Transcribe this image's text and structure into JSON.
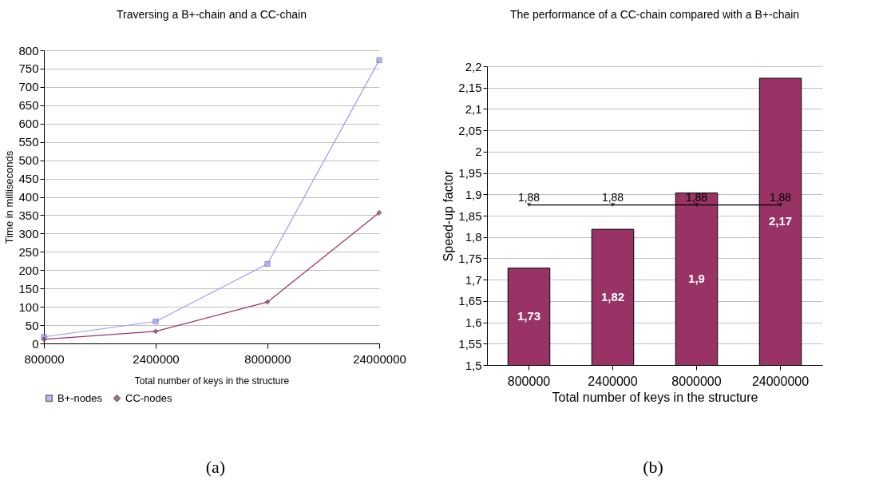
{
  "chart_data": [
    {
      "type": "line",
      "title": "Traversing a B+-chain and a CC-chain",
      "xlabel": "Total number of keys in the structure",
      "ylabel": "Time in milliseconds",
      "categories": [
        "800000",
        "2400000",
        "8000000",
        "24000000"
      ],
      "series": [
        {
          "name": "B+-nodes",
          "color": "#9999ff",
          "marker": "square",
          "values": [
            18,
            60,
            217,
            773
          ]
        },
        {
          "name": "CC-nodes",
          "color": "#993366",
          "marker": "diamond",
          "values": [
            11,
            33,
            113,
            357
          ]
        }
      ],
      "ylim": [
        0,
        800
      ],
      "yticks": [
        0,
        50,
        100,
        150,
        200,
        250,
        300,
        350,
        400,
        450,
        500,
        550,
        600,
        650,
        700,
        750,
        800
      ],
      "grid": "y",
      "legend": "bottom",
      "annotations": [
        "(a)"
      ]
    },
    {
      "type": "bar",
      "title": "The performance of a CC-chain compared with a B+-chain",
      "xlabel": "Total number of keys in the structure",
      "ylabel": "Speed-up factor",
      "categories": [
        "800000",
        "2400000",
        "8000000",
        "24000000"
      ],
      "series": [
        {
          "color": "#993366",
          "values": [
            1.727,
            1.818,
            1.903,
            2.172
          ],
          "value_labels": [
            "1,73",
            "1,82",
            "1,9",
            "2,17"
          ]
        },
        {
          "type": "line",
          "color": "#000000",
          "marker": "triangle",
          "values": [
            1.875,
            1.875,
            1.875,
            1.875
          ],
          "value_labels": [
            "1,88",
            "1,88",
            "1,88",
            "1,88"
          ]
        }
      ],
      "ylim": [
        1.5,
        2.2
      ],
      "yticks": [
        {
          "value": 1.5,
          "label": "1,5"
        },
        {
          "value": 1.55,
          "label": "1,55"
        },
        {
          "value": 1.6,
          "label": "1,6"
        },
        {
          "value": 1.65,
          "label": "1,65"
        },
        {
          "value": 1.7,
          "label": "1,7"
        },
        {
          "value": 1.75,
          "label": "1,75"
        },
        {
          "value": 1.8,
          "label": "1,8"
        },
        {
          "value": 1.85,
          "label": "1,85"
        },
        {
          "value": 1.9,
          "label": "1,9"
        },
        {
          "value": 1.95,
          "label": "1,95"
        },
        {
          "value": 2,
          "label": "2"
        },
        {
          "value": 2.05,
          "label": "2,05"
        },
        {
          "value": 2.1,
          "label": "2,1"
        },
        {
          "value": 2.15,
          "label": "2,15"
        },
        {
          "value": 2.2,
          "label": "2,2"
        }
      ],
      "grid": "y",
      "annotations": [
        "(b)"
      ]
    }
  ]
}
